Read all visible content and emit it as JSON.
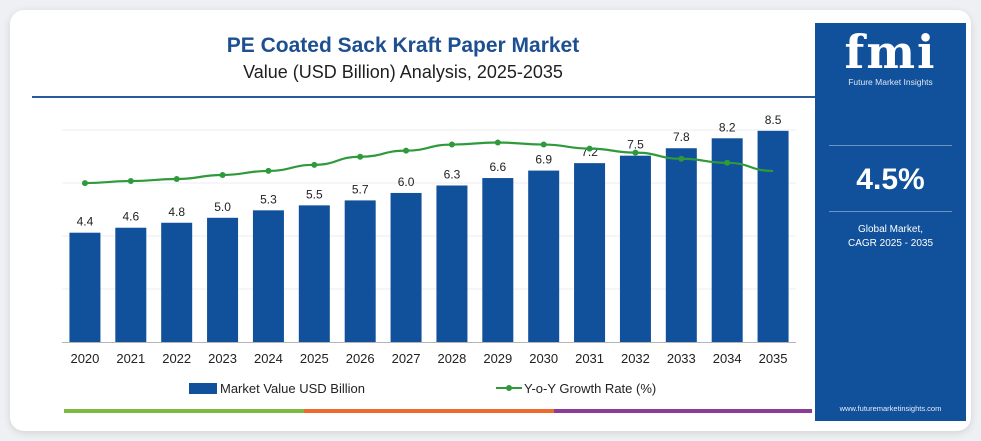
{
  "header": {
    "title": "PE Coated Sack Kraft Paper Market",
    "subtitle": "Value (USD Billion) Analysis, 2025-2035"
  },
  "side_panel": {
    "logo_text": "fmi",
    "logo_tagline": "Future Market Insights",
    "cagr_value": "4.5%",
    "cagr_label_line1": "Global Market,",
    "cagr_label_line2": "CAGR 2025 - 2035",
    "website": "www.futuremarketinsights.com"
  },
  "colors": {
    "bar": "#11509a",
    "line": "#2e9a3c",
    "panel": "#11509a",
    "title": "#1d4f91",
    "accent_green": "#7dbb3e",
    "accent_orange": "#ef6a2d",
    "accent_purple": "#8a3c96"
  },
  "chart_data": {
    "type": "bar",
    "categories": [
      "2020",
      "2021",
      "2022",
      "2023",
      "2024",
      "2025",
      "2026",
      "2027",
      "2028",
      "2029",
      "2030",
      "2031",
      "2032",
      "2033",
      "2034",
      "2035"
    ],
    "series": [
      {
        "name": "Market Value USD Billion",
        "type": "bar",
        "values": [
          4.4,
          4.6,
          4.8,
          5.0,
          5.3,
          5.5,
          5.7,
          6.0,
          6.3,
          6.6,
          6.9,
          7.2,
          7.5,
          7.8,
          8.2,
          8.5
        ],
        "labels": [
          "4.4",
          "4.6",
          "4.8",
          "5.0",
          "5.3",
          "5.5",
          "5.7",
          "6.0",
          "6.3",
          "6.6",
          "6.9",
          "7.2",
          "7.5",
          "7.8",
          "8.2",
          "8.5"
        ]
      },
      {
        "name": "Y-o-Y Growth Rate (%)",
        "type": "line",
        "values": [
          3.2,
          3.3,
          3.4,
          3.6,
          3.8,
          4.1,
          4.5,
          4.8,
          5.1,
          5.2,
          5.1,
          4.9,
          4.7,
          4.4,
          4.2,
          3.8
        ]
      }
    ],
    "ylim": [
      0,
      9.5
    ],
    "y2lim": [
      0,
      7
    ],
    "legend_position": "bottom",
    "grid": true,
    "xlabel": "",
    "ylabel": ""
  }
}
